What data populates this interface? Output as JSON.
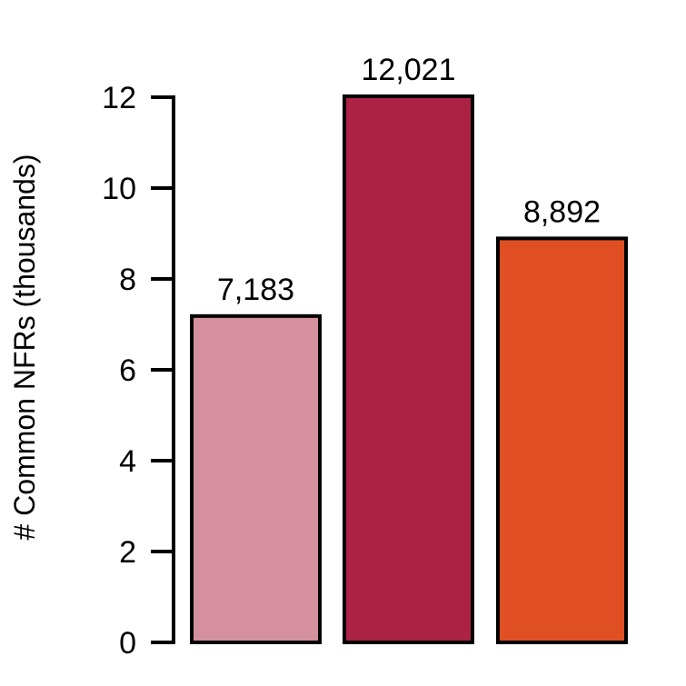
{
  "chart_data": {
    "type": "bar",
    "title": "",
    "xlabel": "",
    "ylabel": "# Common NFRs (thousands)",
    "ylim": [
      0,
      12
    ],
    "yticks": [
      0,
      2,
      4,
      6,
      8,
      10,
      12
    ],
    "grid": false,
    "legend": "none",
    "series": [
      {
        "values": [
          7.183,
          12.021,
          8.892
        ],
        "data_labels": [
          "7,183",
          "12,021",
          "8,892"
        ],
        "colors": [
          "#d4909e",
          "#ab2245",
          "#e04f23"
        ]
      }
    ]
  }
}
